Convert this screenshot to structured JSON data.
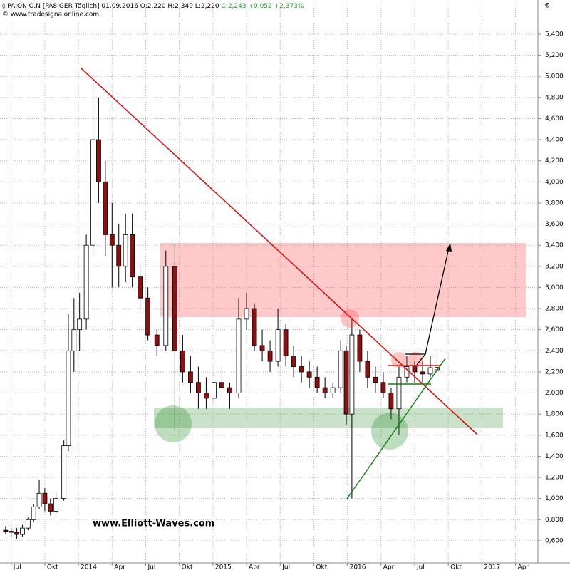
{
  "chart_data": {
    "type": "candlestick",
    "title": "◊ PAION O.N [PA8 GER  Täglich] 01.09.2016 O:2,220 H:2,349 L:2,220",
    "subtitle": "C:2,243 +0,052 +2,373%",
    "source": "© www.tradesignalonline.com",
    "currency_label": "€",
    "watermark": "www.Elliott-Waves.com",
    "grid": true,
    "up_color": "#ffffff",
    "down_color": "#8b1010",
    "wick_color": "#000000",
    "x": [
      5.5,
      6,
      6.5,
      7,
      7.5,
      8,
      8.5,
      9,
      9.5,
      10,
      10.7,
      11.1,
      11.6,
      12.1,
      12.7,
      13.3,
      13.8,
      14.4,
      15.0,
      15.6,
      16.2,
      16.8,
      17.5,
      18.2,
      19.0,
      19.8,
      20.6,
      21.3,
      22.0,
      22.7,
      23.4,
      24.1,
      24.8,
      25.5,
      26.3,
      27.0,
      27.7,
      28.4,
      29.1,
      29.8,
      30.5,
      31.2,
      31.9,
      32.6,
      33.3,
      34.0,
      34.7,
      35.4,
      35.9,
      36.4,
      37.1,
      37.8,
      38.5,
      39.2,
      39.9,
      40.6,
      41.3,
      42.0,
      42.7,
      43.4,
      44.0
    ],
    "open": [
      0.7,
      0.69,
      0.68,
      0.66,
      0.72,
      0.8,
      0.92,
      1.05,
      0.95,
      0.88,
      1.0,
      1.5,
      2.4,
      2.6,
      2.7,
      3.4,
      4.4,
      4.0,
      3.5,
      3.4,
      3.2,
      3.5,
      3.1,
      2.9,
      2.55,
      2.45,
      3.2,
      2.4,
      2.2,
      2.1,
      2.0,
      1.95,
      2.1,
      2.05,
      2.0,
      2.7,
      2.8,
      2.45,
      2.4,
      2.3,
      2.6,
      2.35,
      2.25,
      2.2,
      2.15,
      2.05,
      2.0,
      2.05,
      2.4,
      1.8,
      2.55,
      2.3,
      2.15,
      2.1,
      2.0,
      1.85,
      2.15,
      2.25,
      2.2,
      2.18,
      2.22
    ],
    "high": [
      0.74,
      0.72,
      0.72,
      0.75,
      0.82,
      0.95,
      1.18,
      1.1,
      1.0,
      1.05,
      1.55,
      2.75,
      2.9,
      2.95,
      3.5,
      4.95,
      4.8,
      4.2,
      3.8,
      3.6,
      3.7,
      3.7,
      3.2,
      3.0,
      2.6,
      3.35,
      3.42,
      2.55,
      2.35,
      2.25,
      2.15,
      2.2,
      2.25,
      2.1,
      2.9,
      2.95,
      2.85,
      2.6,
      2.5,
      2.8,
      2.65,
      2.45,
      2.35,
      2.3,
      2.25,
      2.15,
      2.1,
      2.5,
      2.45,
      2.7,
      2.6,
      2.4,
      2.25,
      2.2,
      2.05,
      2.25,
      2.35,
      2.3,
      2.3,
      2.35,
      2.349
    ],
    "low": [
      0.66,
      0.64,
      0.62,
      0.64,
      0.7,
      0.78,
      0.9,
      0.88,
      0.84,
      0.86,
      0.98,
      1.45,
      2.2,
      2.4,
      2.6,
      3.3,
      3.8,
      3.3,
      3.0,
      3.0,
      3.05,
      3.0,
      2.8,
      2.5,
      2.35,
      2.4,
      1.65,
      2.1,
      2.0,
      1.85,
      1.85,
      1.9,
      1.95,
      1.85,
      1.95,
      2.6,
      2.4,
      2.3,
      2.2,
      2.25,
      2.25,
      2.15,
      2.1,
      2.05,
      2.0,
      1.95,
      1.95,
      2.0,
      1.7,
      1.0,
      2.2,
      2.05,
      2.0,
      1.95,
      1.75,
      1.6,
      2.1,
      2.1,
      2.1,
      2.15,
      2.22
    ],
    "close": [
      0.69,
      0.68,
      0.66,
      0.72,
      0.8,
      0.92,
      1.05,
      0.95,
      0.88,
      1.0,
      1.5,
      2.4,
      2.6,
      2.7,
      3.4,
      4.4,
      4.0,
      3.5,
      3.4,
      3.2,
      3.5,
      3.1,
      2.9,
      2.55,
      2.45,
      3.2,
      2.4,
      2.2,
      2.1,
      2.0,
      1.95,
      2.1,
      2.05,
      2.0,
      2.7,
      2.8,
      2.45,
      2.4,
      2.3,
      2.6,
      2.35,
      2.25,
      2.2,
      2.15,
      2.05,
      2.0,
      2.05,
      2.4,
      1.8,
      2.55,
      2.3,
      2.15,
      2.1,
      2.0,
      1.85,
      2.15,
      2.25,
      2.2,
      2.18,
      2.24,
      2.243
    ],
    "xlim": [
      5,
      53
    ],
    "xticks": [
      {
        "value": 6,
        "label": "Jul"
      },
      {
        "value": 9,
        "label": "Okt"
      },
      {
        "value": 12,
        "label": "2014"
      },
      {
        "value": 15,
        "label": "Apr"
      },
      {
        "value": 18,
        "label": "Jul"
      },
      {
        "value": 21,
        "label": "Okt"
      },
      {
        "value": 24,
        "label": "2015"
      },
      {
        "value": 27,
        "label": "Apr"
      },
      {
        "value": 30,
        "label": "Jul"
      },
      {
        "value": 33,
        "label": "Okt"
      },
      {
        "value": 36,
        "label": "2016"
      },
      {
        "value": 39,
        "label": "Apr"
      },
      {
        "value": 42,
        "label": "Jul"
      },
      {
        "value": 45,
        "label": "Okt"
      },
      {
        "value": 48,
        "label": "2017"
      },
      {
        "value": 51,
        "label": "Apr"
      }
    ],
    "ylim": [
      0.39,
      5.69
    ],
    "yticks": [
      {
        "value": 0.6,
        "label": "0,600"
      },
      {
        "value": 0.8,
        "label": "0,800"
      },
      {
        "value": 1.0,
        "label": "1,000"
      },
      {
        "value": 1.2,
        "label": "1,200"
      },
      {
        "value": 1.4,
        "label": "1,400"
      },
      {
        "value": 1.6,
        "label": "1,600"
      },
      {
        "value": 1.8,
        "label": "1,800"
      },
      {
        "value": 2.0,
        "label": "2,000"
      },
      {
        "value": 2.2,
        "label": "2,200"
      },
      {
        "value": 2.4,
        "label": "2,400"
      },
      {
        "value": 2.6,
        "label": "2,600"
      },
      {
        "value": 2.8,
        "label": "2,800"
      },
      {
        "value": 3.0,
        "label": "3,000"
      },
      {
        "value": 3.2,
        "label": "3,200"
      },
      {
        "value": 3.4,
        "label": "3,400"
      },
      {
        "value": 3.6,
        "label": "3,600"
      },
      {
        "value": 3.8,
        "label": "3,800"
      },
      {
        "value": 4.0,
        "label": "4,000"
      },
      {
        "value": 4.2,
        "label": "4,200"
      },
      {
        "value": 4.4,
        "label": "4,400"
      },
      {
        "value": 4.6,
        "label": "4,600"
      },
      {
        "value": 4.8,
        "label": "4,800"
      },
      {
        "value": 5.0,
        "label": "5,000"
      },
      {
        "value": 5.2,
        "label": "5,200"
      },
      {
        "value": 5.4,
        "label": "5,400"
      }
    ]
  }
}
